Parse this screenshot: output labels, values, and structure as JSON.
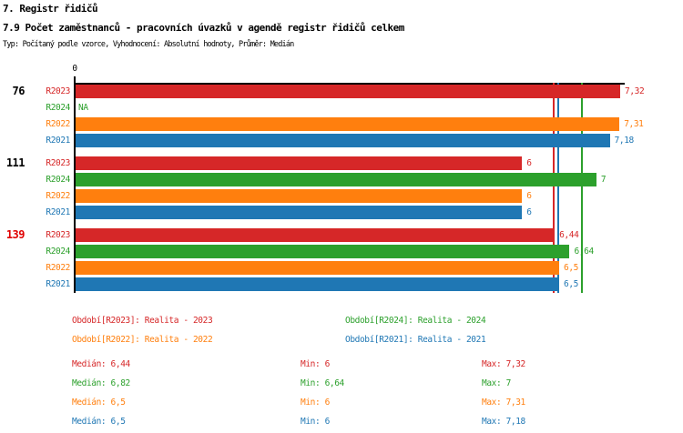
{
  "page": {
    "title_line1": "7. Registr řidičů",
    "title_line2": "7.9 Počet zaměstnanců - pracovních úvazků v agendě registr řidičů celkem",
    "subtitle": "Typ: Počítaný podle vzorce, Vyhodnocení: Absolutní hodnoty, Průměr: Medián"
  },
  "series_colors": {
    "R2023": "#d62728",
    "R2024": "#2ca02c",
    "R2022": "#ff7f0e",
    "R2021": "#1f77b4"
  },
  "highlight_color": "#e00000",
  "axis_color": "#000000",
  "chart_data": {
    "type": "bar",
    "orientation": "horizontal",
    "title": "7.9 Počet zaměstnanců - pracovních úvazků v agendě registr řidičů celkem",
    "xlabel": "",
    "ylabel": "",
    "grid": false,
    "x_axis": {
      "tick_labels": [
        "0"
      ],
      "min": 0,
      "max": 7.4
    },
    "groups": [
      {
        "label": "76",
        "highlighted": false,
        "bars": [
          {
            "series": "R2023",
            "value": 7.32,
            "label": "7,32"
          },
          {
            "series": "R2024",
            "value": null,
            "label": "NA"
          },
          {
            "series": "R2022",
            "value": 7.31,
            "label": "7,31"
          },
          {
            "series": "R2021",
            "value": 7.18,
            "label": "7,18"
          }
        ]
      },
      {
        "label": "111",
        "highlighted": false,
        "bars": [
          {
            "series": "R2023",
            "value": 6,
            "label": "6"
          },
          {
            "series": "R2024",
            "value": 7,
            "label": "7"
          },
          {
            "series": "R2022",
            "value": 6,
            "label": "6"
          },
          {
            "series": "R2021",
            "value": 6,
            "label": "6"
          }
        ]
      },
      {
        "label": "139",
        "highlighted": true,
        "bars": [
          {
            "series": "R2023",
            "value": 6.44,
            "label": "6,44"
          },
          {
            "series": "R2024",
            "value": 6.64,
            "label": "6,64"
          },
          {
            "series": "R2022",
            "value": 6.5,
            "label": "6,5"
          },
          {
            "series": "R2021",
            "value": 6.5,
            "label": "6,5"
          }
        ]
      }
    ],
    "median_lines": [
      {
        "series": "R2022",
        "value": 6.5
      },
      {
        "series": "R2021",
        "value": 6.5
      },
      {
        "series": "R2023",
        "value": 6.44
      },
      {
        "series": "R2024",
        "value": 6.82
      }
    ],
    "legend": [
      {
        "series": "R2023",
        "text": "Období[R2023]: Realita - 2023"
      },
      {
        "series": "R2024",
        "text": "Období[R2024]: Realita - 2024"
      },
      {
        "series": "R2022",
        "text": "Období[R2022]: Realita - 2022"
      },
      {
        "series": "R2021",
        "text": "Období[R2021]: Realita - 2021"
      }
    ],
    "stats": [
      {
        "series": "R2023",
        "median": "Medián: 6,44",
        "min": "Min: 6",
        "max": "Max: 7,32"
      },
      {
        "series": "R2024",
        "median": "Medián: 6,82",
        "min": "Min: 6,64",
        "max": "Max: 7"
      },
      {
        "series": "R2022",
        "median": "Medián: 6,5",
        "min": "Min: 6",
        "max": "Max: 7,31"
      },
      {
        "series": "R2021",
        "median": "Medián: 6,5",
        "min": "Min: 6",
        "max": "Max: 7,18"
      }
    ]
  }
}
